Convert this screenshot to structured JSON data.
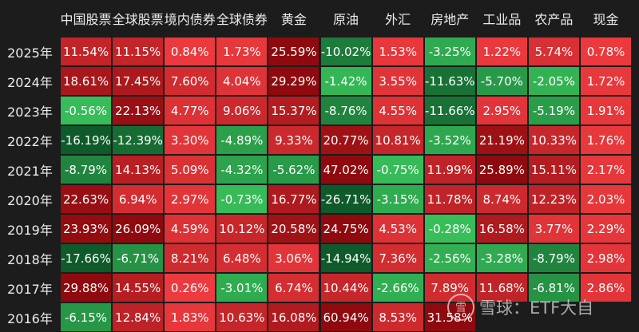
{
  "chart_data": {
    "type": "heatmap",
    "columns": [
      "中国股票",
      "全球股票",
      "境内债券",
      "全球债券",
      "黄金",
      "原油",
      "外汇",
      "房地产",
      "工业品",
      "农产品",
      "现金"
    ],
    "rows": [
      "2025年",
      "2024年",
      "2023年",
      "2022年",
      "2021年",
      "2020年",
      "2019年",
      "2018年",
      "2017年",
      "2016年"
    ],
    "values": [
      [
        11.54,
        11.15,
        0.84,
        1.73,
        25.59,
        -10.02,
        1.53,
        -3.25,
        1.22,
        5.74,
        0.78
      ],
      [
        18.61,
        17.45,
        7.6,
        4.04,
        29.29,
        -1.42,
        3.55,
        -11.63,
        -5.7,
        -2.05,
        1.72
      ],
      [
        -0.56,
        22.13,
        4.77,
        9.06,
        15.37,
        -8.76,
        4.55,
        -11.66,
        2.95,
        -5.19,
        1.91
      ],
      [
        -16.19,
        -12.39,
        3.3,
        -4.89,
        9.33,
        20.77,
        10.81,
        -3.52,
        21.19,
        10.33,
        1.76
      ],
      [
        -8.79,
        14.13,
        5.09,
        -4.32,
        -5.62,
        47.02,
        -0.75,
        11.99,
        25.89,
        15.11,
        2.17
      ],
      [
        22.63,
        6.94,
        2.97,
        -0.73,
        16.77,
        -26.71,
        -3.15,
        11.78,
        8.74,
        12.23,
        2.03
      ],
      [
        23.93,
        26.09,
        4.59,
        10.12,
        20.58,
        24.75,
        4.53,
        -0.28,
        16.58,
        3.77,
        2.29
      ],
      [
        -17.66,
        -6.71,
        8.21,
        6.48,
        3.06,
        -14.94,
        7.36,
        -2.56,
        -3.28,
        -8.79,
        2.98
      ],
      [
        29.88,
        14.55,
        0.26,
        -3.01,
        6.74,
        10.44,
        -2.66,
        7.89,
        11.68,
        -6.81,
        2.86
      ],
      [
        -6.15,
        12.84,
        1.83,
        10.63,
        16.08,
        60.94,
        8.53,
        31.58,
        null,
        null,
        null
      ]
    ],
    "value_suffix": "%",
    "colors": {
      "positive_strong": "#8e0a0e",
      "positive_weak": "#ee3b3f",
      "negative_weak": "#38c05a",
      "negative_strong": "#0f5a2a",
      "background": "#1c1c1c"
    }
  },
  "watermark": {
    "logo_text": "雪",
    "text": "雪球：ETF大自"
  }
}
